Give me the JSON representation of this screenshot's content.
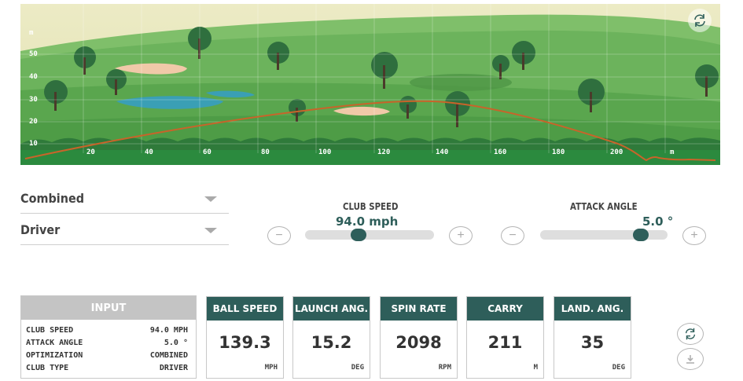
{
  "course": {
    "y_unit": "m",
    "y_ticks": [
      "50",
      "40",
      "30",
      "20",
      "10"
    ],
    "x_ticks": [
      "20",
      "40",
      "60",
      "80",
      "100",
      "120",
      "140",
      "160",
      "180",
      "200"
    ],
    "x_unit": "m",
    "refresh_icon": "refresh-icon"
  },
  "selectors": {
    "optimization": "Combined",
    "club_type": "Driver",
    "caret_icon": "caret-down-icon"
  },
  "club_speed": {
    "title": "CLUB SPEED",
    "value": "94.0 mph",
    "level": 0.4,
    "minus_icon": "minus-icon",
    "plus_icon": "plus-icon"
  },
  "attack_angle": {
    "title": "ATTACK ANGLE",
    "value": "5.0 °",
    "level": 0.83,
    "minus_icon": "minus-icon",
    "plus_icon": "plus-icon"
  },
  "input_panel": {
    "title": "INPUT",
    "rows": [
      {
        "label": "CLUB SPEED",
        "value": "94.0 MPH"
      },
      {
        "label": "ATTACK ANGLE",
        "value": "5.0 °"
      },
      {
        "label": "OPTIMIZATION",
        "value": "COMBINED"
      },
      {
        "label": "CLUB TYPE",
        "value": "DRIVER"
      }
    ]
  },
  "results": [
    {
      "title": "BALL SPEED",
      "value": "139.3",
      "unit": "MPH"
    },
    {
      "title": "LAUNCH ANG.",
      "value": "15.2",
      "unit": "DEG"
    },
    {
      "title": "SPIN RATE",
      "value": "2098",
      "unit": "RPM"
    },
    {
      "title": "CARRY",
      "value": "211",
      "unit": "M"
    },
    {
      "title": "LAND. ANG.",
      "value": "35",
      "unit": "DEG"
    }
  ],
  "side_buttons": {
    "refresh_icon": "refresh-icon",
    "download_icon": "download-icon"
  },
  "colors": {
    "accent": "#2e5e5a",
    "trajectory": "#c8642a",
    "fairway": "#5fae52"
  }
}
